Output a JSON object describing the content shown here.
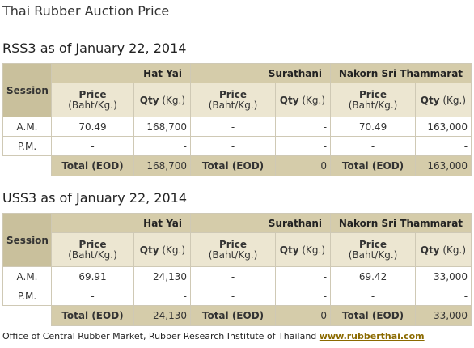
{
  "page_title": "Thai Rubber Auction Price",
  "tables": [
    {
      "title": "RSS3 as of January 22, 2014",
      "session_label": "Session",
      "locations": [
        "Hat Yai",
        "Surathani",
        "Nakorn Sri Thammarat"
      ],
      "price_label": "Price",
      "price_unit": "(Baht/Kg.)",
      "qty_label": "Qty",
      "qty_unit": "(Kg.)",
      "rows": [
        {
          "session": "A.M.",
          "values": [
            "70.49",
            "168,700",
            "-",
            "-",
            "70.49",
            "163,000"
          ]
        },
        {
          "session": "P.M.",
          "values": [
            "-",
            "-",
            "-",
            "-",
            "-",
            "-"
          ]
        }
      ],
      "total_label": "Total (EOD)",
      "totals": [
        "168,700",
        "0",
        "163,000"
      ]
    },
    {
      "title": "USS3 as of January 22, 2014",
      "session_label": "Session",
      "locations": [
        "Hat Yai",
        "Surathani",
        "Nakorn Sri Thammarat"
      ],
      "price_label": "Price",
      "price_unit": "(Baht/Kg.)",
      "qty_label": "Qty",
      "qty_unit": "(Kg.)",
      "rows": [
        {
          "session": "A.M.",
          "values": [
            "69.91",
            "24,130",
            "-",
            "-",
            "69.42",
            "33,000"
          ]
        },
        {
          "session": "P.M.",
          "values": [
            "-",
            "-",
            "-",
            "-",
            "-",
            "-"
          ]
        }
      ],
      "total_label": "Total (EOD)",
      "totals": [
        "24,130",
        "0",
        "33,000"
      ]
    }
  ],
  "footer": {
    "text": "Office of Central Rubber Market, Rubber Research Institute of Thailand",
    "link": "www.rubberthai.com"
  }
}
